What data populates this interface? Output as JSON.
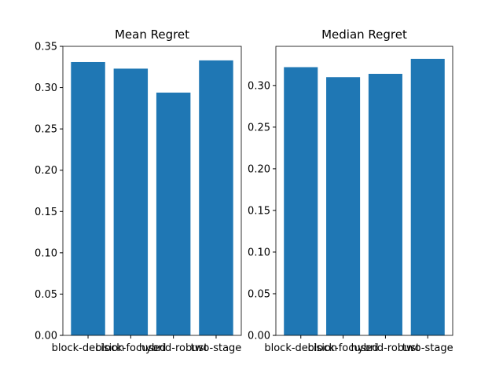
{
  "chart_data": [
    {
      "type": "bar",
      "title": "Mean Regret",
      "categories": [
        "block-decision",
        "block-focused",
        "hybrid-robust",
        "two-stage"
      ],
      "values": [
        0.331,
        0.323,
        0.294,
        0.333
      ],
      "color": "#1f77b4",
      "ylim": [
        0,
        0.35
      ],
      "yticks": [
        {
          "value": 0,
          "label": "0.00"
        },
        0.05,
        {
          "value": 0.1,
          "label": "0.10"
        },
        0.15,
        {
          "value": 0.2,
          "label": "0.20"
        },
        0.25,
        {
          "value": 0.3,
          "label": "0.30"
        },
        0.35
      ]
    },
    {
      "type": "bar",
      "title": "Median Regret",
      "categories": [
        "block-decision",
        "block-focused",
        "hybrid-robust",
        "two-stage"
      ],
      "values": [
        0.322,
        0.31,
        0.314,
        0.332
      ],
      "color": "#1f77b4",
      "ylim": [
        0,
        0.347
      ],
      "yticks": [
        {
          "value": 0,
          "label": "0.00"
        },
        0.05,
        {
          "value": 0.1,
          "label": "0.10"
        },
        0.15,
        {
          "value": 0.2,
          "label": "0.20"
        },
        0.25,
        {
          "value": 0.3,
          "label": "0.30"
        }
      ]
    }
  ]
}
